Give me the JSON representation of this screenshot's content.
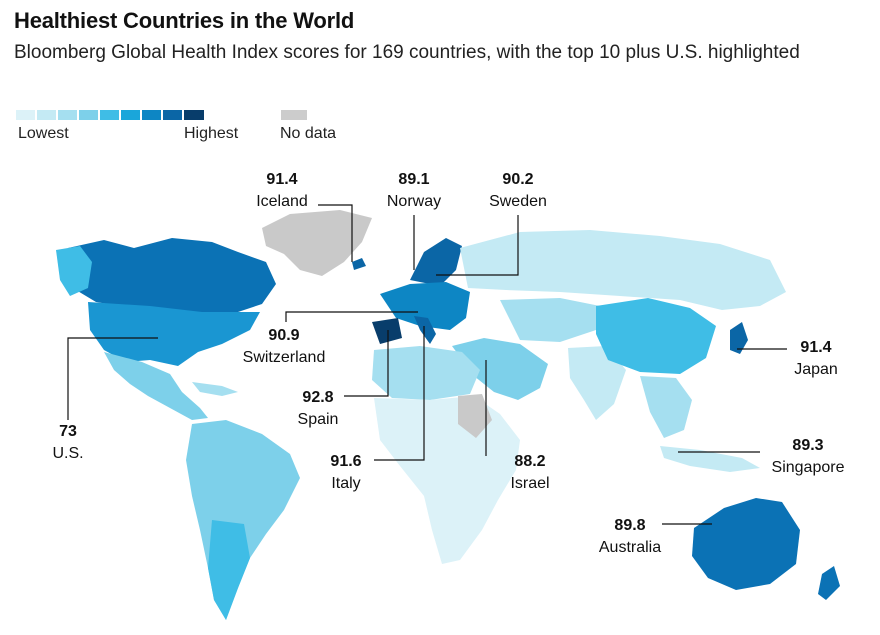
{
  "header": {
    "title": "Healthiest Countries in the World",
    "subtitle": "Bloomberg Global Health Index scores for 169 countries, with the top 10 plus U.S. highlighted"
  },
  "legend": {
    "scale_colors": [
      "#dcf2f8",
      "#c4eaf4",
      "#a5dff0",
      "#7dd0ea",
      "#3fbde6",
      "#1aa6da",
      "#0d86c4",
      "#0b66a6",
      "#083d6b"
    ],
    "low_label": "Lowest",
    "high_label": "Highest",
    "nodata_color": "#cccccc",
    "nodata_label": "No data"
  },
  "callouts": [
    {
      "id": "iceland",
      "value": "91.4",
      "country": "Iceland"
    },
    {
      "id": "norway",
      "value": "89.1",
      "country": "Norway"
    },
    {
      "id": "sweden",
      "value": "90.2",
      "country": "Sweden"
    },
    {
      "id": "switzerland",
      "value": "90.9",
      "country": "Switzerland"
    },
    {
      "id": "japan",
      "value": "91.4",
      "country": "Japan"
    },
    {
      "id": "spain",
      "value": "92.8",
      "country": "Spain"
    },
    {
      "id": "us",
      "value": "73",
      "country": "U.S."
    },
    {
      "id": "singapore",
      "value": "89.3",
      "country": "Singapore"
    },
    {
      "id": "italy",
      "value": "91.6",
      "country": "Italy"
    },
    {
      "id": "israel",
      "value": "88.2",
      "country": "Israel"
    },
    {
      "id": "australia",
      "value": "89.8",
      "country": "Australia"
    }
  ]
}
